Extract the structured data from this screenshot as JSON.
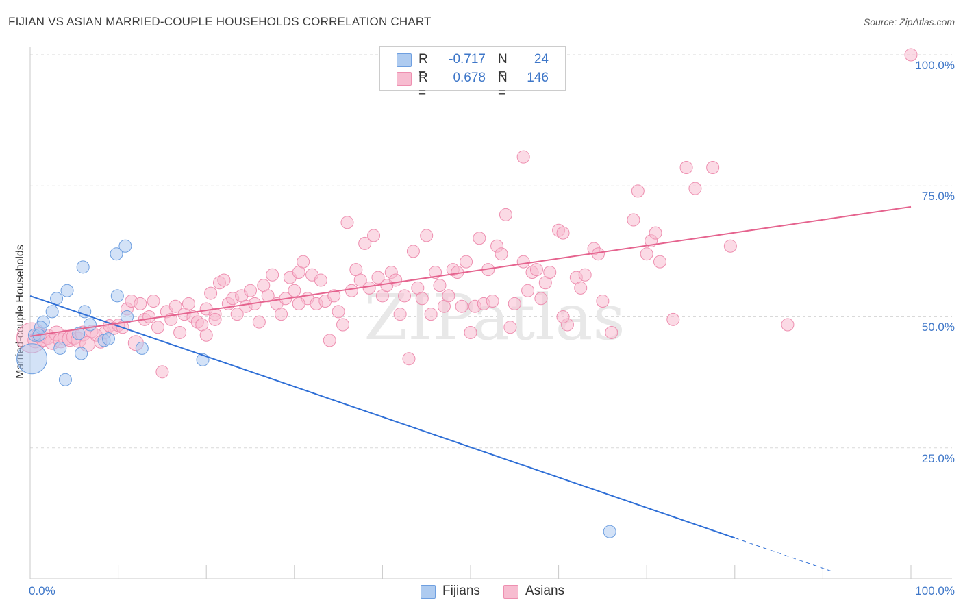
{
  "title": "FIJIAN VS ASIAN MARRIED-COUPLE HOUSEHOLDS CORRELATION CHART",
  "source": "Source: ZipAtlas.com",
  "watermark": "ZIPatlas",
  "colors": {
    "fijians_fill": "#aecbf0",
    "fijians_stroke": "#6e9fe0",
    "fijians_line": "#2f6fd6",
    "asians_fill": "#f7bcd0",
    "asians_stroke": "#ee8fb0",
    "asians_line": "#e5638e",
    "tick_text": "#3d76c8",
    "grid": "#d9d9d9"
  },
  "legend": {
    "rows": [
      {
        "r_label": "R =",
        "r_value": "-0.717",
        "n_label": "N =",
        "n_value": "24"
      },
      {
        "r_label": "R =",
        "r_value": "0.678",
        "n_label": "N =",
        "n_value": "146"
      }
    ]
  },
  "bottom_legend": {
    "fijians": "Fijians",
    "asians": "Asians"
  },
  "chart_data": {
    "type": "scatter",
    "title": "FIJIAN VS ASIAN MARRIED-COUPLE HOUSEHOLDS CORRELATION CHART",
    "xlabel": "",
    "ylabel": "Married-couple Households",
    "xlim": [
      0,
      100
    ],
    "ylim": [
      0,
      100
    ],
    "x_tick_labels": [
      "0.0%",
      "100.0%"
    ],
    "y_ticks": [
      {
        "value": 100,
        "label": "100.0%"
      },
      {
        "value": 75,
        "label": "75.0%"
      },
      {
        "value": 50,
        "label": "50.0%"
      },
      {
        "value": 25,
        "label": "25.0%"
      }
    ],
    "series": [
      {
        "name": "Fijians",
        "r": -0.717,
        "n": 24,
        "trend": {
          "x0": 0,
          "y0": 54,
          "x1": 80,
          "y1": 7.8,
          "dashed_to_x": 91
        },
        "points": [
          [
            0.2,
            42,
            3
          ],
          [
            0.5,
            46.5,
            1
          ],
          [
            1.5,
            49,
            1
          ],
          [
            1.2,
            48,
            1
          ],
          [
            2.5,
            51,
            1
          ],
          [
            3.0,
            53.5,
            1
          ],
          [
            3.4,
            44,
            1
          ],
          [
            4.2,
            55,
            1
          ],
          [
            4.0,
            38,
            1
          ],
          [
            5.5,
            46.8,
            1
          ],
          [
            5.8,
            43,
            1
          ],
          [
            6.2,
            51,
            1
          ],
          [
            6.0,
            59.5,
            1
          ],
          [
            6.8,
            48.5,
            1
          ],
          [
            8.4,
            45.5,
            1
          ],
          [
            8.9,
            45.8,
            1
          ],
          [
            9.8,
            62,
            1
          ],
          [
            9.9,
            54,
            1
          ],
          [
            10.8,
            63.5,
            1
          ],
          [
            11.0,
            50,
            1
          ],
          [
            12.7,
            44,
            1
          ],
          [
            19.6,
            41.8,
            1
          ],
          [
            65.8,
            9.0,
            1
          ],
          [
            1.0,
            46.5,
            1
          ]
        ]
      },
      {
        "name": "Asians",
        "r": 0.678,
        "n": 146,
        "trend": {
          "x0": 0,
          "y0": 46.3,
          "x1": 100,
          "y1": 71
        },
        "points": [
          [
            0.2,
            46,
            3
          ],
          [
            0.6,
            45.5,
            2
          ],
          [
            1.0,
            46.5,
            2
          ],
          [
            1.5,
            45.8,
            2
          ],
          [
            2.0,
            46.2,
            2
          ],
          [
            2.5,
            45.2,
            2
          ],
          [
            3.0,
            46.8,
            2
          ],
          [
            3.5,
            45.5,
            2
          ],
          [
            4.0,
            46,
            2
          ],
          [
            4.5,
            45.8,
            2
          ],
          [
            5.0,
            46.2,
            2
          ],
          [
            5.5,
            45.6,
            2
          ],
          [
            6.0,
            46.8,
            2
          ],
          [
            6.5,
            44.8,
            2
          ],
          [
            7.0,
            47.2,
            1
          ],
          [
            7.5,
            46.5,
            1
          ],
          [
            8.0,
            45.2,
            1
          ],
          [
            8.5,
            47,
            1
          ],
          [
            9.0,
            48.3,
            1
          ],
          [
            9.5,
            47.8,
            1
          ],
          [
            10.0,
            48.4,
            1
          ],
          [
            10.5,
            48,
            1
          ],
          [
            11.0,
            51.5,
            1
          ],
          [
            11.5,
            53,
            1
          ],
          [
            12.0,
            45,
            2
          ],
          [
            12.5,
            52.5,
            1
          ],
          [
            13.0,
            49.5,
            1
          ],
          [
            13.5,
            50,
            1
          ],
          [
            14.0,
            53,
            1
          ],
          [
            14.5,
            48,
            1
          ],
          [
            15.0,
            39.5,
            1
          ],
          [
            15.5,
            51,
            1
          ],
          [
            16.0,
            49.5,
            1
          ],
          [
            16.5,
            52,
            1
          ],
          [
            17.0,
            47,
            1
          ],
          [
            17.5,
            50.5,
            1
          ],
          [
            18.0,
            52.5,
            1
          ],
          [
            18.5,
            50,
            1
          ],
          [
            19.0,
            49,
            1
          ],
          [
            19.5,
            48.5,
            1
          ],
          [
            20.0,
            51.5,
            1
          ],
          [
            20.5,
            54.5,
            1
          ],
          [
            21.0,
            50.5,
            1
          ],
          [
            21.5,
            56.5,
            1
          ],
          [
            22.0,
            57,
            1
          ],
          [
            22.5,
            52.5,
            1
          ],
          [
            23.0,
            53.5,
            1
          ],
          [
            23.5,
            50.5,
            1
          ],
          [
            24.0,
            54,
            1
          ],
          [
            24.5,
            52,
            1
          ],
          [
            25.0,
            55,
            1
          ],
          [
            25.5,
            52.5,
            1
          ],
          [
            26.0,
            49,
            1
          ],
          [
            26.5,
            56,
            1
          ],
          [
            27.0,
            54,
            1
          ],
          [
            27.5,
            58,
            1
          ],
          [
            28.0,
            52.5,
            1
          ],
          [
            28.5,
            50.5,
            1
          ],
          [
            29.0,
            53.5,
            1
          ],
          [
            29.5,
            57.5,
            1
          ],
          [
            30.0,
            55,
            1
          ],
          [
            30.5,
            58.5,
            1
          ],
          [
            31.0,
            60.5,
            1
          ],
          [
            31.5,
            53.5,
            1
          ],
          [
            32.0,
            58,
            1
          ],
          [
            32.5,
            52.5,
            1
          ],
          [
            33.0,
            57,
            1
          ],
          [
            33.5,
            53,
            1
          ],
          [
            34.0,
            45.5,
            1
          ],
          [
            34.5,
            54,
            1
          ],
          [
            35.0,
            51,
            1
          ],
          [
            35.5,
            48.5,
            1
          ],
          [
            36.0,
            68,
            1
          ],
          [
            36.5,
            55,
            1
          ],
          [
            37.0,
            59,
            1
          ],
          [
            37.5,
            57,
            1
          ],
          [
            38.0,
            64,
            1
          ],
          [
            38.5,
            55.5,
            1
          ],
          [
            39.0,
            65.5,
            1
          ],
          [
            39.5,
            57.5,
            1
          ],
          [
            40.0,
            54,
            1
          ],
          [
            40.5,
            56,
            1
          ],
          [
            41.0,
            58.5,
            1
          ],
          [
            42.0,
            50.5,
            1
          ],
          [
            42.5,
            54,
            1
          ],
          [
            43.0,
            42,
            1
          ],
          [
            43.5,
            62.5,
            1
          ],
          [
            44.0,
            55.5,
            1
          ],
          [
            44.5,
            53.5,
            1
          ],
          [
            45.0,
            65.5,
            1
          ],
          [
            45.5,
            50.5,
            1
          ],
          [
            46.0,
            58.5,
            1
          ],
          [
            46.5,
            56,
            1
          ],
          [
            47.0,
            52,
            1
          ],
          [
            47.5,
            54,
            1
          ],
          [
            48.0,
            59,
            1
          ],
          [
            48.5,
            58.5,
            1
          ],
          [
            49.0,
            52,
            1
          ],
          [
            49.5,
            60.5,
            1
          ],
          [
            50.0,
            47,
            1
          ],
          [
            50.5,
            52,
            1
          ],
          [
            51.0,
            65,
            1
          ],
          [
            51.5,
            52.5,
            1
          ],
          [
            52.0,
            59,
            1
          ],
          [
            52.5,
            53,
            1
          ],
          [
            53.0,
            63.5,
            1
          ],
          [
            53.5,
            62,
            1
          ],
          [
            54.0,
            69.5,
            1
          ],
          [
            54.5,
            48,
            1
          ],
          [
            55.0,
            52.5,
            1
          ],
          [
            56.0,
            60.5,
            1
          ],
          [
            56.5,
            55,
            1
          ],
          [
            57.0,
            58.5,
            1
          ],
          [
            57.5,
            59,
            1
          ],
          [
            58.0,
            53.5,
            1
          ],
          [
            58.5,
            56.5,
            1
          ],
          [
            59.0,
            58.5,
            1
          ],
          [
            60.0,
            66.5,
            1
          ],
          [
            60.5,
            66,
            1
          ],
          [
            61.0,
            48.5,
            1
          ],
          [
            62.0,
            57.5,
            1
          ],
          [
            62.5,
            55.5,
            1
          ],
          [
            63.0,
            58,
            1
          ],
          [
            64.0,
            63,
            1
          ],
          [
            64.5,
            62,
            1
          ],
          [
            65.0,
            53,
            1
          ],
          [
            66.0,
            47,
            1
          ],
          [
            68.5,
            68.5,
            1
          ],
          [
            69.0,
            74,
            1
          ],
          [
            70.0,
            62,
            1
          ],
          [
            70.5,
            64.5,
            1
          ],
          [
            71.0,
            66,
            1
          ],
          [
            71.5,
            60.5,
            1
          ],
          [
            73.0,
            49.5,
            1
          ],
          [
            74.5,
            78.5,
            1
          ],
          [
            75.5,
            74.5,
            1
          ],
          [
            77.5,
            78.5,
            1
          ],
          [
            79.5,
            63.5,
            1
          ],
          [
            86.0,
            48.5,
            1
          ],
          [
            100.0,
            100,
            1
          ],
          [
            56.0,
            80.5,
            1
          ],
          [
            20.0,
            46.5,
            1
          ],
          [
            21.0,
            49.5,
            1
          ],
          [
            60.5,
            50,
            1
          ],
          [
            41.5,
            57,
            1
          ],
          [
            30.5,
            52.5,
            1
          ]
        ]
      }
    ]
  }
}
